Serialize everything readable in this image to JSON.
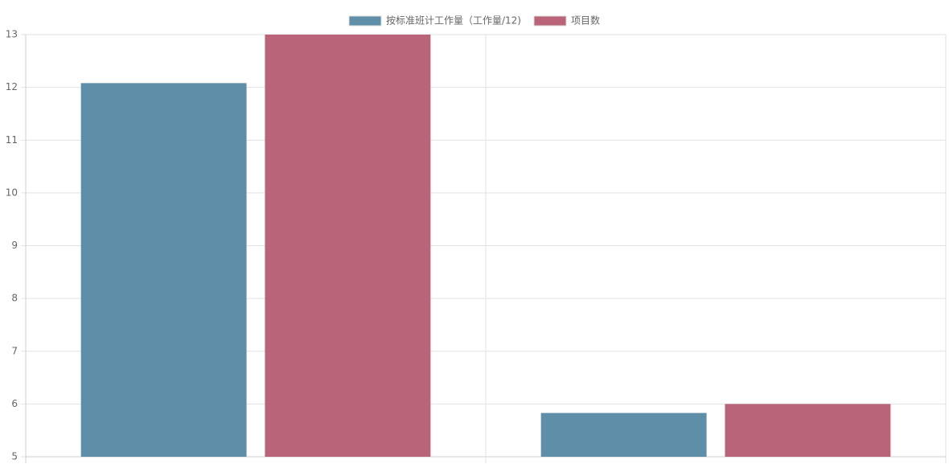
{
  "chart_data": {
    "type": "bar",
    "categories": [
      null,
      null
    ],
    "series": [
      {
        "name": "按标准班计工作量（工作量/12)",
        "color": "#5f8ea8",
        "values": [
          12.08,
          5.83
        ]
      },
      {
        "name": "项目数",
        "color": "#b96479",
        "values": [
          13,
          6
        ]
      }
    ],
    "ylim": [
      5,
      13
    ],
    "yticks": [
      5,
      6,
      7,
      8,
      9,
      10,
      11,
      12,
      13
    ],
    "grid": true,
    "legend": "top"
  }
}
